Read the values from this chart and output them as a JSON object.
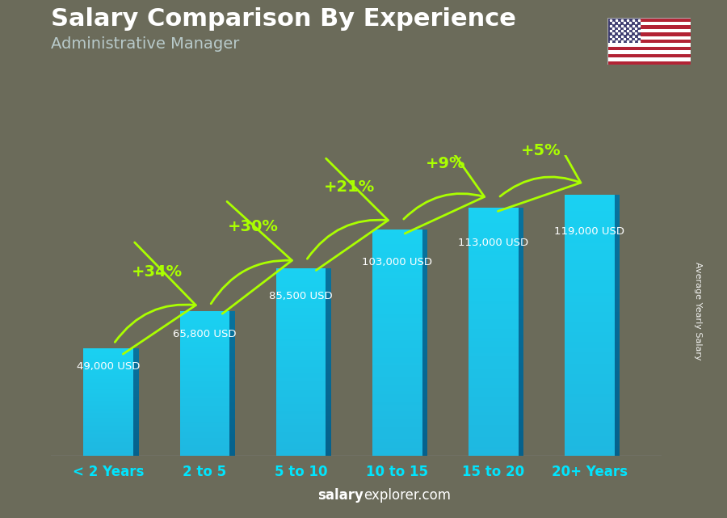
{
  "title": "Salary Comparison By Experience",
  "subtitle": "Administrative Manager",
  "categories": [
    "< 2 Years",
    "2 to 5",
    "5 to 10",
    "10 to 15",
    "15 to 20",
    "20+ Years"
  ],
  "values": [
    49000,
    65800,
    85500,
    103000,
    113000,
    119000
  ],
  "value_labels": [
    "49,000 USD",
    "65,800 USD",
    "85,500 USD",
    "103,000 USD",
    "113,000 USD",
    "119,000 USD"
  ],
  "pct_changes": [
    "+34%",
    "+30%",
    "+21%",
    "+9%",
    "+5%"
  ],
  "bg_color": "#6b6b5a",
  "pct_color": "#aaff00",
  "tick_color": "#00e5ff",
  "ylabel_text": "Average Yearly Salary",
  "footer_bold": "salary",
  "footer_normal": "explorer.com",
  "figsize": [
    9.0,
    6.41
  ],
  "dpi": 100
}
